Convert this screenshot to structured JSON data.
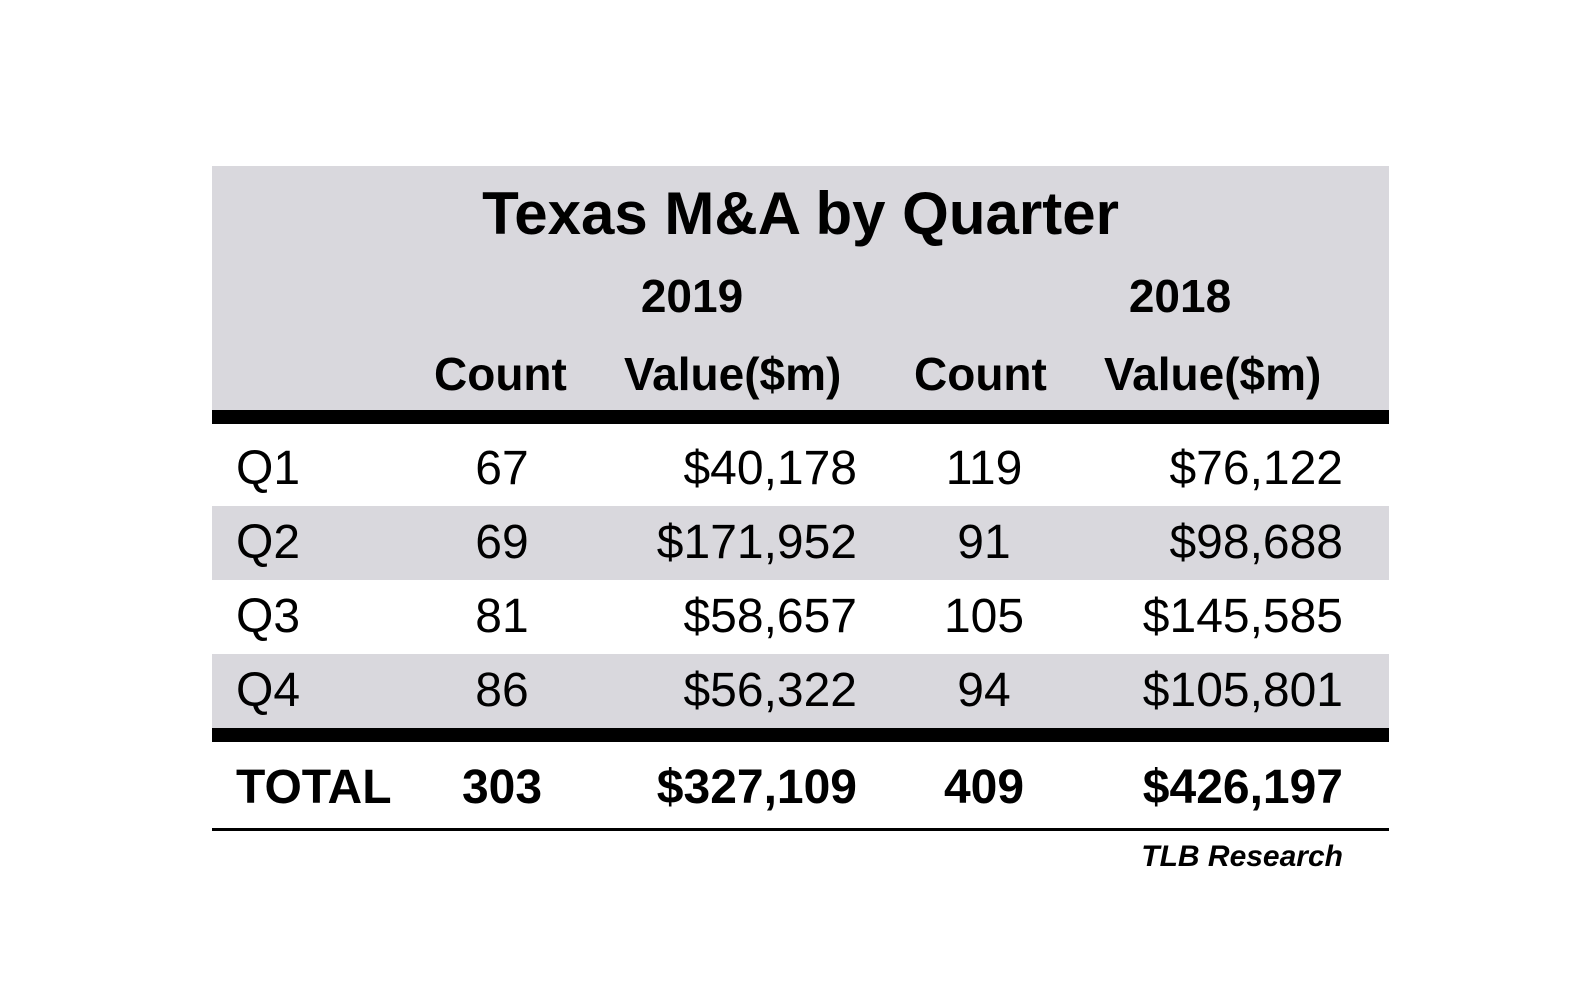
{
  "chart_data": {
    "type": "table",
    "title": "Texas M&A by Quarter",
    "years": [
      "2019",
      "2018"
    ],
    "column_headers": [
      "Count",
      "Value($m)",
      "Count",
      "Value($m)"
    ],
    "rows": [
      {
        "label": "Q1",
        "count_2019": "67",
        "value_2019": "$40,178",
        "count_2018": "119",
        "value_2018": "$76,122"
      },
      {
        "label": "Q2",
        "count_2019": "69",
        "value_2019": "$171,952",
        "count_2018": "91",
        "value_2018": "$98,688"
      },
      {
        "label": "Q3",
        "count_2019": "81",
        "value_2019": "$58,657",
        "count_2018": "105",
        "value_2018": "$145,585"
      },
      {
        "label": "Q4",
        "count_2019": "86",
        "value_2019": "$56,322",
        "count_2018": "94",
        "value_2018": "$105,801"
      }
    ],
    "total": {
      "label": "TOTAL",
      "count_2019": "303",
      "value_2019": "$327,109",
      "count_2018": "409",
      "value_2018": "$426,197"
    },
    "source": "TLB Research"
  },
  "colors": {
    "header_fill": "#d9d8dd",
    "row_shade": "#d9d8dd",
    "rule": "#000000"
  }
}
